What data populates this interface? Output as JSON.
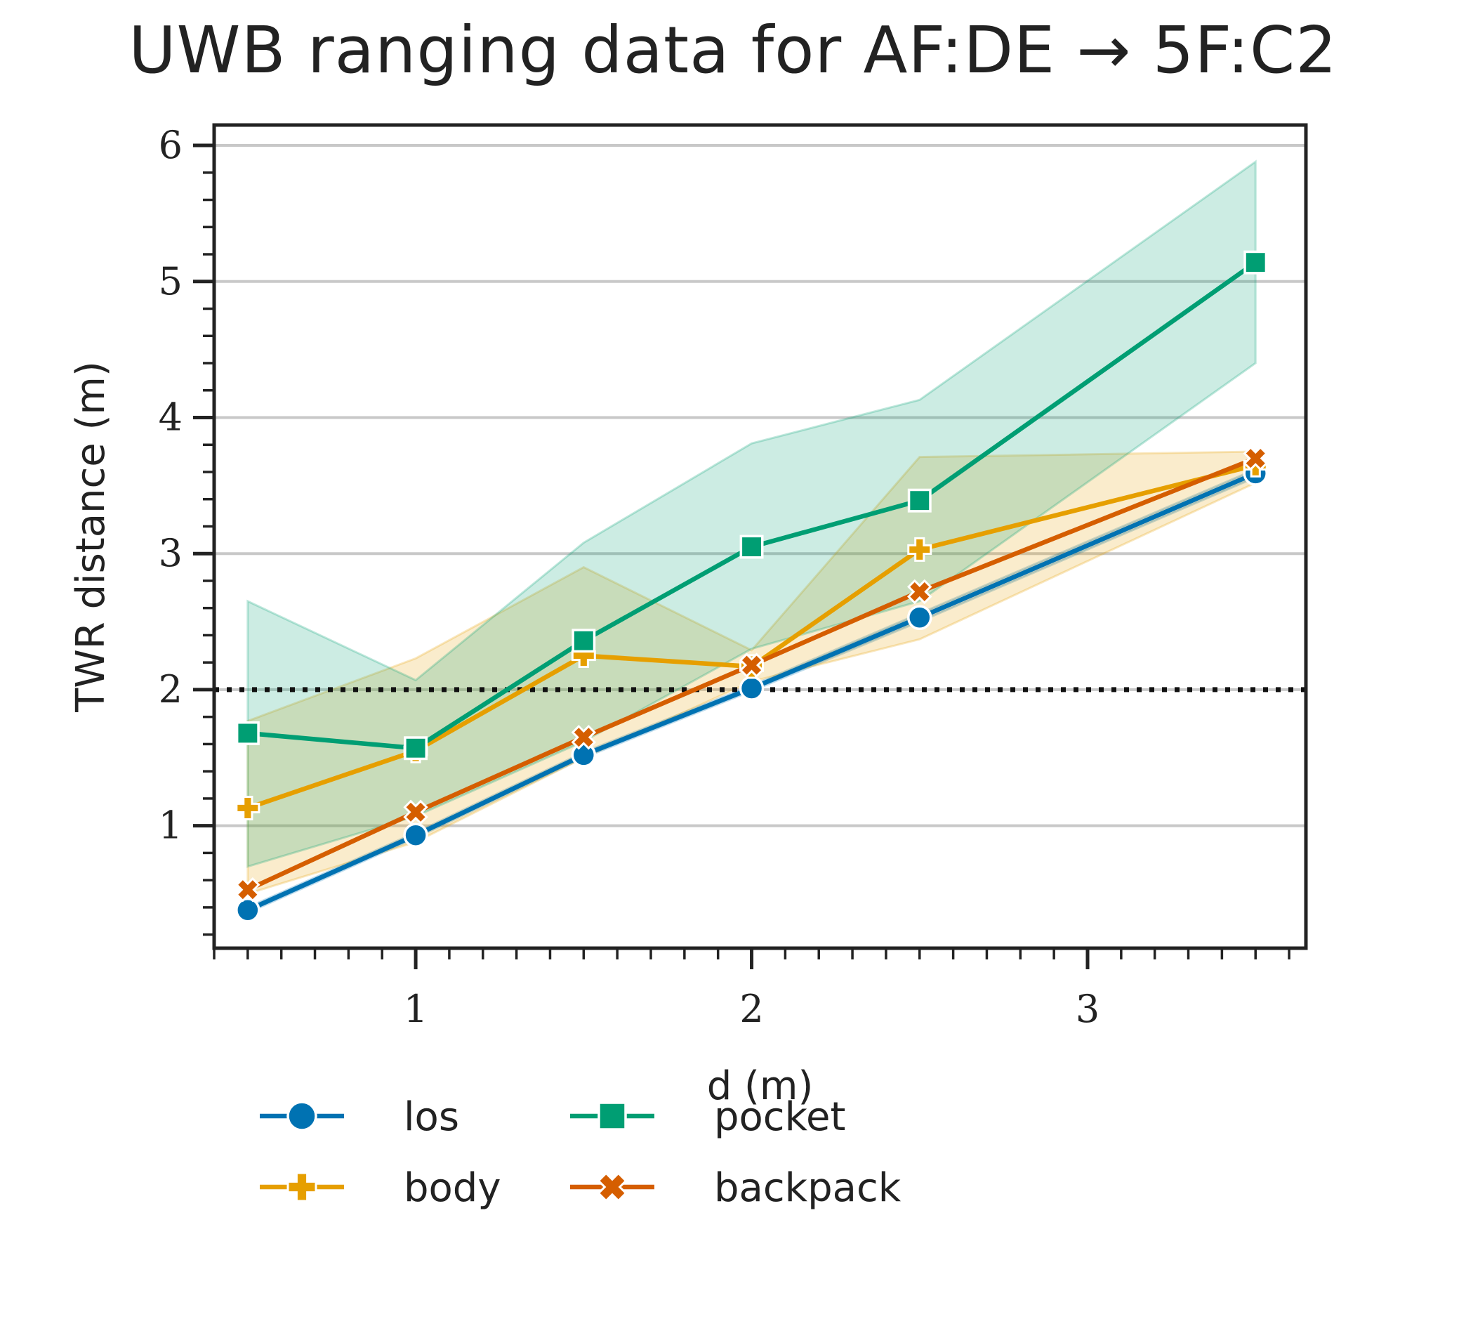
{
  "chart_data": {
    "type": "line",
    "title": "UWB ranging data for AF:DE → 5F:C2",
    "xlabel": "d (m)",
    "ylabel": "TWR distance (m)",
    "xlim": [
      0.4,
      3.65
    ],
    "ylim": [
      0.1,
      6.15
    ],
    "xticks": [
      1,
      2,
      3
    ],
    "yticks": [
      1,
      2,
      3,
      4,
      5,
      6
    ],
    "grid": "horizontal",
    "reference_line": {
      "y": 2,
      "style": "dotted",
      "color": "#111111"
    },
    "x": [
      0.5,
      1.0,
      1.5,
      2.0,
      2.5,
      3.5
    ],
    "series": [
      {
        "name": "los",
        "color": "#0072b2",
        "marker": "circle",
        "values": [
          0.38,
          0.93,
          1.52,
          2.01,
          2.53,
          3.59
        ],
        "ci_low": [
          0.36,
          0.91,
          1.5,
          1.99,
          2.5,
          3.56
        ],
        "ci_high": [
          0.4,
          0.95,
          1.54,
          2.03,
          2.56,
          3.62
        ]
      },
      {
        "name": "body",
        "color": "#e69f00",
        "marker": "plus",
        "values": [
          1.13,
          1.55,
          2.25,
          2.17,
          3.03,
          3.65
        ],
        "ci_low": [
          0.5,
          0.88,
          1.5,
          2.06,
          2.37,
          3.52
        ],
        "ci_high": [
          1.77,
          2.23,
          2.9,
          2.29,
          3.71,
          3.75
        ]
      },
      {
        "name": "pocket",
        "color": "#009e73",
        "marker": "square",
        "values": [
          1.68,
          1.57,
          2.36,
          3.05,
          3.39,
          5.14
        ],
        "ci_low": [
          0.7,
          1.07,
          1.62,
          2.3,
          2.65,
          4.4
        ],
        "ci_high": [
          2.65,
          2.07,
          3.08,
          3.81,
          4.13,
          5.88
        ]
      },
      {
        "name": "backpack",
        "color": "#d55e00",
        "marker": "x",
        "values": [
          0.53,
          1.1,
          1.65,
          2.18,
          2.72,
          3.7
        ],
        "ci_low": null,
        "ci_high": null
      }
    ],
    "legend": {
      "placement": "bottom",
      "columns": 2
    }
  }
}
